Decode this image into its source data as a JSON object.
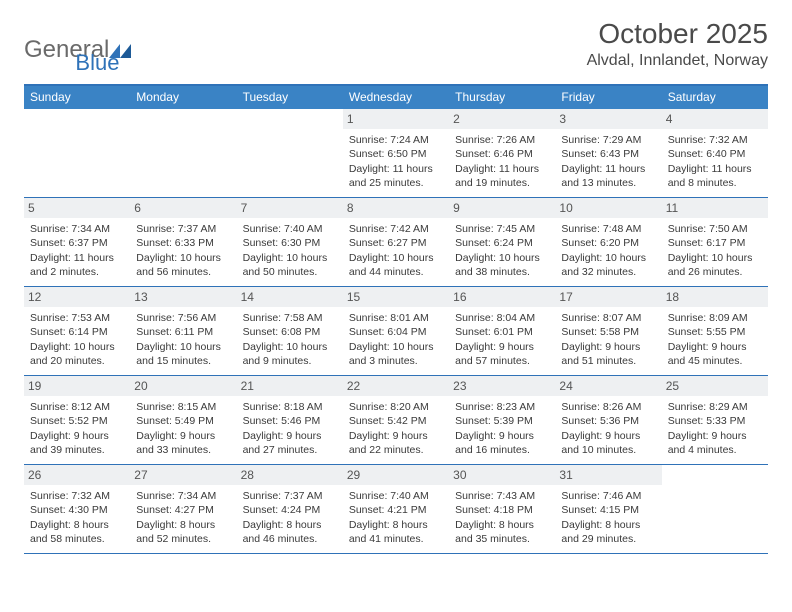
{
  "branding": {
    "logo_word1": "General",
    "logo_word2": "Blue",
    "logo_color_gray": "#6a6a6a",
    "logo_color_blue": "#2f72b8"
  },
  "header": {
    "month_title": "October 2025",
    "location": "Alvdal, Innlandet, Norway"
  },
  "styling": {
    "header_bg": "#3a83c5",
    "row_border": "#2f72b8",
    "daynum_bg": "#eef0f2",
    "text_color": "#3a3a3a",
    "page_bg": "#ffffff",
    "dow_fontsize": 12,
    "body_fontsize": 10.5,
    "title_fontsize": 28,
    "location_fontsize": 16
  },
  "days_of_week": [
    "Sunday",
    "Monday",
    "Tuesday",
    "Wednesday",
    "Thursday",
    "Friday",
    "Saturday"
  ],
  "weeks": [
    [
      {
        "n": "",
        "sr": "",
        "ss": "",
        "dl1": "",
        "dl2": ""
      },
      {
        "n": "",
        "sr": "",
        "ss": "",
        "dl1": "",
        "dl2": ""
      },
      {
        "n": "",
        "sr": "",
        "ss": "",
        "dl1": "",
        "dl2": ""
      },
      {
        "n": "1",
        "sr": "Sunrise: 7:24 AM",
        "ss": "Sunset: 6:50 PM",
        "dl1": "Daylight: 11 hours",
        "dl2": "and 25 minutes."
      },
      {
        "n": "2",
        "sr": "Sunrise: 7:26 AM",
        "ss": "Sunset: 6:46 PM",
        "dl1": "Daylight: 11 hours",
        "dl2": "and 19 minutes."
      },
      {
        "n": "3",
        "sr": "Sunrise: 7:29 AM",
        "ss": "Sunset: 6:43 PM",
        "dl1": "Daylight: 11 hours",
        "dl2": "and 13 minutes."
      },
      {
        "n": "4",
        "sr": "Sunrise: 7:32 AM",
        "ss": "Sunset: 6:40 PM",
        "dl1": "Daylight: 11 hours",
        "dl2": "and 8 minutes."
      }
    ],
    [
      {
        "n": "5",
        "sr": "Sunrise: 7:34 AM",
        "ss": "Sunset: 6:37 PM",
        "dl1": "Daylight: 11 hours",
        "dl2": "and 2 minutes."
      },
      {
        "n": "6",
        "sr": "Sunrise: 7:37 AM",
        "ss": "Sunset: 6:33 PM",
        "dl1": "Daylight: 10 hours",
        "dl2": "and 56 minutes."
      },
      {
        "n": "7",
        "sr": "Sunrise: 7:40 AM",
        "ss": "Sunset: 6:30 PM",
        "dl1": "Daylight: 10 hours",
        "dl2": "and 50 minutes."
      },
      {
        "n": "8",
        "sr": "Sunrise: 7:42 AM",
        "ss": "Sunset: 6:27 PM",
        "dl1": "Daylight: 10 hours",
        "dl2": "and 44 minutes."
      },
      {
        "n": "9",
        "sr": "Sunrise: 7:45 AM",
        "ss": "Sunset: 6:24 PM",
        "dl1": "Daylight: 10 hours",
        "dl2": "and 38 minutes."
      },
      {
        "n": "10",
        "sr": "Sunrise: 7:48 AM",
        "ss": "Sunset: 6:20 PM",
        "dl1": "Daylight: 10 hours",
        "dl2": "and 32 minutes."
      },
      {
        "n": "11",
        "sr": "Sunrise: 7:50 AM",
        "ss": "Sunset: 6:17 PM",
        "dl1": "Daylight: 10 hours",
        "dl2": "and 26 minutes."
      }
    ],
    [
      {
        "n": "12",
        "sr": "Sunrise: 7:53 AM",
        "ss": "Sunset: 6:14 PM",
        "dl1": "Daylight: 10 hours",
        "dl2": "and 20 minutes."
      },
      {
        "n": "13",
        "sr": "Sunrise: 7:56 AM",
        "ss": "Sunset: 6:11 PM",
        "dl1": "Daylight: 10 hours",
        "dl2": "and 15 minutes."
      },
      {
        "n": "14",
        "sr": "Sunrise: 7:58 AM",
        "ss": "Sunset: 6:08 PM",
        "dl1": "Daylight: 10 hours",
        "dl2": "and 9 minutes."
      },
      {
        "n": "15",
        "sr": "Sunrise: 8:01 AM",
        "ss": "Sunset: 6:04 PM",
        "dl1": "Daylight: 10 hours",
        "dl2": "and 3 minutes."
      },
      {
        "n": "16",
        "sr": "Sunrise: 8:04 AM",
        "ss": "Sunset: 6:01 PM",
        "dl1": "Daylight: 9 hours",
        "dl2": "and 57 minutes."
      },
      {
        "n": "17",
        "sr": "Sunrise: 8:07 AM",
        "ss": "Sunset: 5:58 PM",
        "dl1": "Daylight: 9 hours",
        "dl2": "and 51 minutes."
      },
      {
        "n": "18",
        "sr": "Sunrise: 8:09 AM",
        "ss": "Sunset: 5:55 PM",
        "dl1": "Daylight: 9 hours",
        "dl2": "and 45 minutes."
      }
    ],
    [
      {
        "n": "19",
        "sr": "Sunrise: 8:12 AM",
        "ss": "Sunset: 5:52 PM",
        "dl1": "Daylight: 9 hours",
        "dl2": "and 39 minutes."
      },
      {
        "n": "20",
        "sr": "Sunrise: 8:15 AM",
        "ss": "Sunset: 5:49 PM",
        "dl1": "Daylight: 9 hours",
        "dl2": "and 33 minutes."
      },
      {
        "n": "21",
        "sr": "Sunrise: 8:18 AM",
        "ss": "Sunset: 5:46 PM",
        "dl1": "Daylight: 9 hours",
        "dl2": "and 27 minutes."
      },
      {
        "n": "22",
        "sr": "Sunrise: 8:20 AM",
        "ss": "Sunset: 5:42 PM",
        "dl1": "Daylight: 9 hours",
        "dl2": "and 22 minutes."
      },
      {
        "n": "23",
        "sr": "Sunrise: 8:23 AM",
        "ss": "Sunset: 5:39 PM",
        "dl1": "Daylight: 9 hours",
        "dl2": "and 16 minutes."
      },
      {
        "n": "24",
        "sr": "Sunrise: 8:26 AM",
        "ss": "Sunset: 5:36 PM",
        "dl1": "Daylight: 9 hours",
        "dl2": "and 10 minutes."
      },
      {
        "n": "25",
        "sr": "Sunrise: 8:29 AM",
        "ss": "Sunset: 5:33 PM",
        "dl1": "Daylight: 9 hours",
        "dl2": "and 4 minutes."
      }
    ],
    [
      {
        "n": "26",
        "sr": "Sunrise: 7:32 AM",
        "ss": "Sunset: 4:30 PM",
        "dl1": "Daylight: 8 hours",
        "dl2": "and 58 minutes."
      },
      {
        "n": "27",
        "sr": "Sunrise: 7:34 AM",
        "ss": "Sunset: 4:27 PM",
        "dl1": "Daylight: 8 hours",
        "dl2": "and 52 minutes."
      },
      {
        "n": "28",
        "sr": "Sunrise: 7:37 AM",
        "ss": "Sunset: 4:24 PM",
        "dl1": "Daylight: 8 hours",
        "dl2": "and 46 minutes."
      },
      {
        "n": "29",
        "sr": "Sunrise: 7:40 AM",
        "ss": "Sunset: 4:21 PM",
        "dl1": "Daylight: 8 hours",
        "dl2": "and 41 minutes."
      },
      {
        "n": "30",
        "sr": "Sunrise: 7:43 AM",
        "ss": "Sunset: 4:18 PM",
        "dl1": "Daylight: 8 hours",
        "dl2": "and 35 minutes."
      },
      {
        "n": "31",
        "sr": "Sunrise: 7:46 AM",
        "ss": "Sunset: 4:15 PM",
        "dl1": "Daylight: 8 hours",
        "dl2": "and 29 minutes."
      },
      {
        "n": "",
        "sr": "",
        "ss": "",
        "dl1": "",
        "dl2": ""
      }
    ]
  ]
}
